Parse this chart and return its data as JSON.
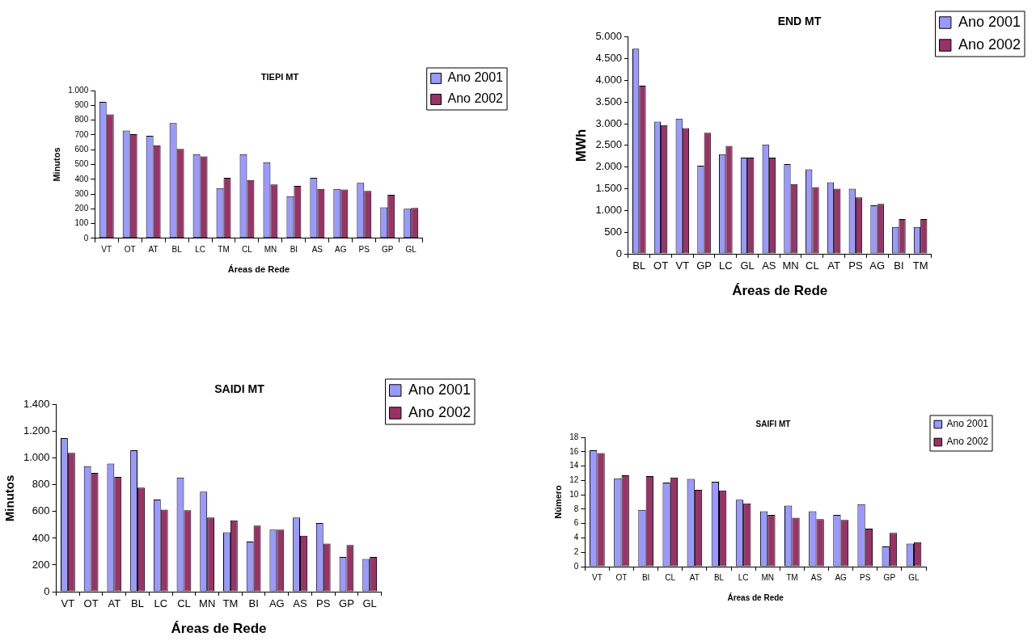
{
  "chart_data": [
    {
      "type": "bar",
      "title": "TIEPI MT",
      "xlabel": "Áreas de Rede",
      "ylabel": "Minutos",
      "categories": [
        "VT",
        "OT",
        "AT",
        "BL",
        "LC",
        "TM",
        "CL",
        "MN",
        "BI",
        "AS",
        "AG",
        "PS",
        "GP",
        "GL"
      ],
      "series": [
        {
          "name": "Ano 2001",
          "color": "#9999ff",
          "values": [
            925,
            730,
            695,
            780,
            570,
            340,
            570,
            515,
            285,
            410,
            335,
            375,
            210,
            200
          ]
        },
        {
          "name": "Ano 2002",
          "color": "#993366",
          "values": [
            840,
            705,
            630,
            605,
            555,
            410,
            395,
            365,
            355,
            335,
            330,
            320,
            295,
            205
          ]
        }
      ],
      "ylim": [
        0,
        1000
      ],
      "yticks": [
        0,
        100,
        200,
        300,
        400,
        500,
        600,
        700,
        800,
        900,
        {
          "value": 1000,
          "label": "1.000"
        }
      ],
      "grid": false,
      "legend": "top right"
    },
    {
      "type": "bar",
      "title": "END MT",
      "xlabel": "Áreas de Rede",
      "ylabel": "MWh",
      "categories": [
        "BL",
        "OT",
        "VT",
        "GP",
        "LC",
        "GL",
        "AS",
        "MN",
        "CL",
        "AT",
        "PS",
        "AG",
        "BI",
        "TM"
      ],
      "series": [
        {
          "name": "Ano 2001",
          "color": "#9999ff",
          "values": [
            4730,
            3050,
            3120,
            2030,
            2300,
            2220,
            2520,
            2070,
            1950,
            1650,
            1500,
            1120,
            620,
            620
          ]
        },
        {
          "name": "Ano 2002",
          "color": "#993366",
          "values": [
            3880,
            2970,
            2900,
            2790,
            2490,
            2220,
            2220,
            1610,
            1540,
            1500,
            1300,
            1150,
            800,
            800
          ]
        }
      ],
      "ylim": [
        0,
        5000
      ],
      "yticks": [
        0,
        500,
        {
          "value": 1000,
          "label": "1.000"
        },
        {
          "value": 1500,
          "label": "1.500"
        },
        {
          "value": 2000,
          "label": "2.000"
        },
        {
          "value": 2500,
          "label": "2.500"
        },
        {
          "value": 3000,
          "label": "3.000"
        },
        {
          "value": 3500,
          "label": "3.500"
        },
        {
          "value": 4000,
          "label": "4.000"
        },
        {
          "value": 4500,
          "label": "4.500"
        },
        {
          "value": 5000,
          "label": "5.000"
        }
      ],
      "grid": false,
      "legend": "top right"
    },
    {
      "type": "bar",
      "title": "SAIDI MT",
      "xlabel": "Áreas de Rede",
      "ylabel": "Minutos",
      "categories": [
        "VT",
        "OT",
        "AT",
        "BL",
        "LC",
        "CL",
        "MN",
        "TM",
        "BI",
        "AG",
        "AS",
        "PS",
        "GP",
        "GL"
      ],
      "series": [
        {
          "name": "Ano 2001",
          "color": "#9999ff",
          "values": [
            1150,
            940,
            960,
            1060,
            690,
            855,
            750,
            445,
            375,
            465,
            555,
            515,
            260,
            245
          ]
        },
        {
          "name": "Ano 2002",
          "color": "#993366",
          "values": [
            1040,
            890,
            860,
            780,
            615,
            610,
            555,
            535,
            495,
            465,
            420,
            360,
            350,
            260
          ]
        }
      ],
      "ylim": [
        0,
        1400
      ],
      "yticks": [
        0,
        200,
        400,
        600,
        800,
        {
          "value": 1000,
          "label": "1.000"
        },
        {
          "value": 1200,
          "label": "1.200"
        },
        {
          "value": 1400,
          "label": "1.400"
        }
      ],
      "grid": false,
      "legend": "top right"
    },
    {
      "type": "bar",
      "title": "SAIFI MT",
      "xlabel": "Áreas de Rede",
      "ylabel": "Número",
      "categories": [
        "VT",
        "OT",
        "BI",
        "CL",
        "AT",
        "BL",
        "LC",
        "MN",
        "TM",
        "AS",
        "AG",
        "PS",
        "GP",
        "GL"
      ],
      "series": [
        {
          "name": "Ano 2001",
          "color": "#9999ff",
          "values": [
            16.2,
            12.3,
            7.9,
            11.7,
            12.2,
            11.8,
            9.3,
            7.7,
            8.5,
            7.7,
            7.2,
            8.7,
            2.8,
            3.2
          ]
        },
        {
          "name": "Ano 2002",
          "color": "#993366",
          "values": [
            15.8,
            12.7,
            12.6,
            12.4,
            10.7,
            10.6,
            8.8,
            7.2,
            6.8,
            6.6,
            6.5,
            5.3,
            4.7,
            3.4
          ]
        }
      ],
      "ylim": [
        0,
        18
      ],
      "yticks": [
        0,
        2,
        4,
        6,
        8,
        10,
        12,
        14,
        16,
        18
      ],
      "grid": false,
      "legend": "top right"
    }
  ]
}
